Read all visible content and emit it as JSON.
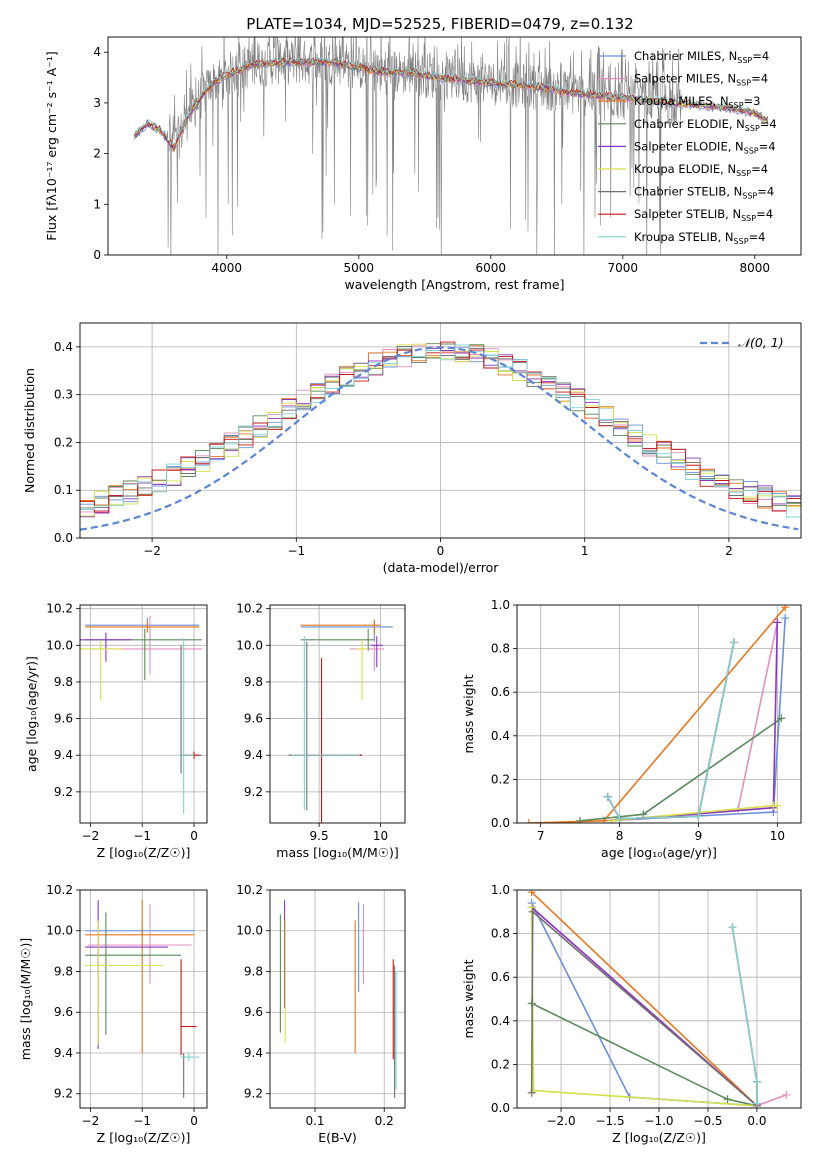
{
  "figure_title": "PLATE=1034, MJD=52525, FIBERID=0479, z=0.132",
  "colors": {
    "Chabrier MILES": "#6a8fd8",
    "Salpeter MILES": "#e68fbf",
    "Kroupa MILES": "#e8771e",
    "Chabrier ELODIE": "#5a8a5a",
    "Salpeter ELODIE": "#8a36c2",
    "Kroupa ELODIE": "#d8e04a",
    "Chabrier STELIB": "#707070",
    "Salpeter STELIB": "#c81414",
    "Kroupa STELIB": "#7fd2d8",
    "data": "#808080",
    "gauss": "#5b86d6"
  },
  "chart_data": [
    {
      "id": "spectrum",
      "type": "line",
      "title": "",
      "xlabel": "wavelength [Angstrom, rest frame]",
      "ylabel": "Flux [fλ10⁻¹⁷ erg cm⁻² s⁻¹ A⁻¹]",
      "xlim": [
        3100,
        8350
      ],
      "ylim": [
        0,
        4.3
      ],
      "xticks": [
        4000,
        5000,
        6000,
        7000,
        8000
      ],
      "yticks": [
        0,
        1,
        2,
        3,
        4
      ],
      "continuum_x": [
        3300,
        3400,
        3500,
        3600,
        3700,
        3800,
        3900,
        4000,
        4200,
        4400,
        4600,
        4800,
        5000,
        5200,
        5400,
        5600,
        5800,
        6000,
        6200,
        6400,
        6600,
        6800,
        7000,
        7200,
        7400,
        7600,
        7800,
        8000,
        8100
      ],
      "continuum_y": [
        2.35,
        2.6,
        2.45,
        2.1,
        2.7,
        3.1,
        3.4,
        3.55,
        3.75,
        3.8,
        3.8,
        3.8,
        3.7,
        3.6,
        3.6,
        3.5,
        3.45,
        3.4,
        3.35,
        3.3,
        3.2,
        3.15,
        3.1,
        3.05,
        3.0,
        2.95,
        2.9,
        2.8,
        2.65
      ],
      "legend": [
        "Chabrier MILES, N_SSP=4",
        "Salpeter MILES, N_SSP=4",
        "Kroupa MILES, N_SSP=3",
        "Chabrier ELODIE, N_SSP=4",
        "Salpeter ELODIE, N_SSP=4",
        "Kroupa ELODIE, N_SSP=4",
        "Chabrier STELIB, N_SSP=4",
        "Salpeter STELIB, N_SSP=4",
        "Kroupa STELIB, N_SSP=4"
      ],
      "legend_placement": "upper-right",
      "grid": false
    },
    {
      "id": "residuals",
      "type": "line",
      "xlabel": "(data-model)/error",
      "ylabel": "Normed distribution",
      "xlim": [
        -2.5,
        2.5
      ],
      "ylim": [
        0,
        0.45
      ],
      "xticks": [
        -2,
        -1,
        0,
        1,
        2
      ],
      "yticks": [
        0.0,
        0.1,
        0.2,
        0.3,
        0.4
      ],
      "series": [
        {
          "name": "N(0,1)",
          "function": "gaussian",
          "mean": 0,
          "sigma": 1
        }
      ],
      "legend_label": "𝒩(0, 1)",
      "legend_placement": "upper-right",
      "grid": true
    },
    {
      "id": "age_vs_Z",
      "type": "scatter",
      "xlabel": "Z [log₁₀(Z/Z☉)]",
      "ylabel": "age  [log₁₀(age/yr)]",
      "xlim": [
        -2.2,
        0.25
      ],
      "ylim": [
        9.03,
        10.22
      ],
      "xticks": [
        -2,
        -1,
        0
      ],
      "yticks": [
        9.2,
        9.4,
        9.6,
        9.8,
        10.0,
        10.2
      ],
      "grid": true
    },
    {
      "id": "age_vs_mass",
      "type": "scatter",
      "xlabel": "mass [log₁₀(M/M☉)]",
      "ylabel": "",
      "xlim": [
        9.1,
        10.2
      ],
      "ylim": [
        9.03,
        10.22
      ],
      "xticks": [
        9.5,
        10.0
      ],
      "yticks": [
        9.2,
        9.4,
        9.6,
        9.8,
        10.0,
        10.2
      ],
      "grid": true
    },
    {
      "id": "weight_vs_age",
      "type": "line",
      "xlabel": "age  [log₁₀(age/yr)]",
      "ylabel": "mass weight",
      "xlim": [
        6.7,
        10.3
      ],
      "ylim": [
        0,
        1
      ],
      "xticks": [
        7,
        8,
        9,
        10
      ],
      "yticks": [
        0.0,
        0.2,
        0.4,
        0.6,
        0.8,
        1.0
      ],
      "series": [
        {
          "name": "Chabrier MILES",
          "x": [
            7.8,
            9.95,
            10.1
          ],
          "y": [
            0.01,
            0.05,
            0.94
          ]
        },
        {
          "name": "Salpeter MILES",
          "x": [
            7.8,
            9.5,
            10.0
          ],
          "y": [
            0.01,
            0.06,
            0.92
          ]
        },
        {
          "name": "Kroupa MILES",
          "x": [
            6.85,
            7.8,
            10.1
          ],
          "y": [
            0.0,
            0.01,
            0.99
          ]
        },
        {
          "name": "Chabrier ELODIE",
          "x": [
            7.5,
            8.3,
            10.05
          ],
          "y": [
            0.01,
            0.04,
            0.48
          ]
        },
        {
          "name": "Salpeter ELODIE",
          "x": [
            7.9,
            9.95,
            10.0
          ],
          "y": [
            0.01,
            0.07,
            0.92
          ]
        },
        {
          "name": "Kroupa ELODIE",
          "x": [
            7.9,
            9.95,
            10.0
          ],
          "y": [
            0.01,
            0.08,
            0.08
          ]
        },
        {
          "name": "Chabrier STELIB",
          "x": [
            7.85,
            8.0,
            9.0,
            9.45
          ],
          "y": [
            0.12,
            0.02,
            0.03,
            0.83
          ]
        },
        {
          "name": "Salpeter STELIB",
          "x": [
            7.85,
            8.0,
            9.0,
            9.45
          ],
          "y": [
            0.12,
            0.02,
            0.03,
            0.83
          ]
        },
        {
          "name": "Kroupa STELIB",
          "x": [
            7.85,
            8.0,
            9.0,
            9.45
          ],
          "y": [
            0.12,
            0.02,
            0.03,
            0.83
          ]
        }
      ],
      "grid": true
    },
    {
      "id": "mass_vs_Z",
      "type": "scatter",
      "xlabel": "Z [log₁₀(Z/Z☉)]",
      "ylabel": "mass [log₁₀(M/M☉)]",
      "xlim": [
        -2.2,
        0.25
      ],
      "ylim": [
        9.13,
        10.2
      ],
      "xticks": [
        -2,
        -1,
        0
      ],
      "yticks": [
        9.2,
        9.4,
        9.6,
        9.8,
        10.0,
        10.2
      ],
      "grid": true
    },
    {
      "id": "mass_vs_EBV",
      "type": "scatter",
      "xlabel": "E(B-V)",
      "ylabel": "",
      "xlim": [
        0.035,
        0.23
      ],
      "ylim": [
        9.13,
        10.2
      ],
      "xticks": [
        0.1,
        0.2
      ],
      "yticks": [
        9.2,
        9.4,
        9.6,
        9.8,
        10.0,
        10.2
      ],
      "grid": true
    },
    {
      "id": "weight_vs_Z",
      "type": "line",
      "xlabel": "Z [log₁₀(Z/Z☉)]",
      "ylabel": "mass weight",
      "xlim": [
        -2.45,
        0.45
      ],
      "ylim": [
        0,
        1
      ],
      "xticks": [
        -2.0,
        -1.5,
        -1.0,
        -0.5,
        0.0
      ],
      "yticks": [
        0.0,
        0.2,
        0.4,
        0.6,
        0.8,
        1.0
      ],
      "series": [
        {
          "name": "Chabrier MILES",
          "x": [
            -2.3,
            -1.3,
            0.0
          ],
          "y": [
            0.94,
            0.05,
            0.01
          ]
        },
        {
          "name": "Salpeter MILES",
          "x": [
            -2.3,
            0.0,
            0.3
          ],
          "y": [
            0.92,
            0.01,
            0.06
          ]
        },
        {
          "name": "Kroupa MILES",
          "x": [
            -2.3,
            0.0
          ],
          "y": [
            0.99,
            0.01
          ]
        },
        {
          "name": "Chabrier ELODIE",
          "x": [
            -2.3,
            -0.3,
            0.0
          ],
          "y": [
            0.48,
            0.04,
            0.01
          ]
        },
        {
          "name": "Salpeter ELODIE",
          "x": [
            -2.3,
            0.0
          ],
          "y": [
            0.92,
            0.01
          ]
        },
        {
          "name": "Kroupa ELODIE",
          "x": [
            -2.3,
            -2.28,
            0.0
          ],
          "y": [
            0.92,
            0.08,
            0.01
          ]
        },
        {
          "name": "Chabrier STELIB",
          "x": [
            -2.3,
            -2.29,
            0.0
          ],
          "y": [
            0.07,
            0.9,
            0.01
          ]
        },
        {
          "name": "Salpeter STELIB",
          "x": [
            -0.25,
            0.0,
            0.0
          ],
          "y": [
            0.83,
            0.12,
            0.02
          ]
        },
        {
          "name": "Kroupa STELIB",
          "x": [
            -0.25,
            0.0,
            0.0
          ],
          "y": [
            0.83,
            0.12,
            0.02
          ]
        }
      ],
      "grid": true
    }
  ]
}
